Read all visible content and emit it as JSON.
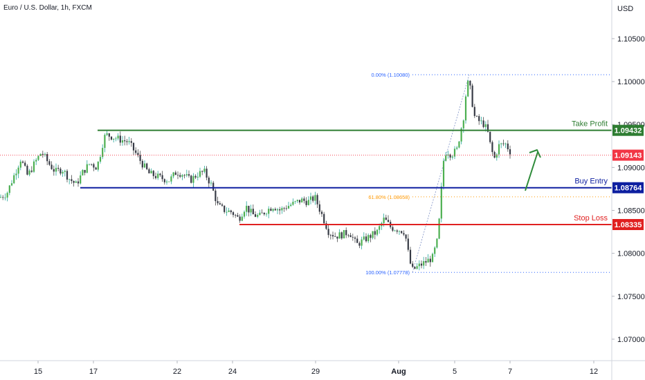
{
  "chart_data": {
    "type": "candlestick",
    "title": "Euro / U.S. Dollar, 1h, FXCM",
    "currency": "USD",
    "y_range": [
      1.0675,
      1.1095
    ],
    "x_ticks": [
      "15",
      "17",
      "22",
      "24",
      "29",
      "Aug",
      "5",
      "7",
      "12"
    ],
    "y_ticks": [
      "1.07000",
      "1.07500",
      "1.08000",
      "1.08500",
      "1.09000",
      "1.09500",
      "1.10000",
      "1.10500"
    ],
    "levels": [
      {
        "name": "Take Profit",
        "value": 1.09432,
        "label": "1.09432",
        "color": "#2e7d32"
      },
      {
        "name": "Buy Entry",
        "value": 1.08764,
        "label": "1.08764",
        "color": "#0d1fa0"
      },
      {
        "name": "Stop Loss",
        "value": 1.08335,
        "label": "1.08335",
        "color": "#e02020"
      }
    ],
    "current_price": {
      "value": 1.09143,
      "label": "1.09143",
      "color": "#f23645"
    },
    "fib_levels": [
      {
        "pct": "0.00%",
        "value": 1.1008,
        "label": "0.00% (1.10080)",
        "color": "#2962ff"
      },
      {
        "pct": "61.80%",
        "value": 1.08658,
        "label": "61.80% (1.08658)",
        "color": "#ff9800"
      },
      {
        "pct": "100.00%",
        "value": 1.07778,
        "label": "100.00% (1.07778)",
        "color": "#2962ff"
      }
    ],
    "path_anchors": [
      [
        0,
        1.0865
      ],
      [
        10,
        1.087
      ],
      [
        20,
        1.089
      ],
      [
        30,
        1.091
      ],
      [
        40,
        1.089
      ],
      [
        50,
        1.0905
      ],
      [
        60,
        1.0918
      ],
      [
        70,
        1.0905
      ],
      [
        80,
        1.0895
      ],
      [
        90,
        1.0898
      ],
      [
        100,
        1.0887
      ],
      [
        110,
        1.088
      ],
      [
        120,
        1.0895
      ],
      [
        130,
        1.0905
      ],
      [
        140,
        1.09
      ],
      [
        147,
        1.0922
      ],
      [
        150,
        1.0935
      ],
      [
        155,
        1.0938
      ],
      [
        165,
        1.0935
      ],
      [
        175,
        1.0932
      ],
      [
        185,
        1.093
      ],
      [
        195,
        1.0918
      ],
      [
        205,
        1.0905
      ],
      [
        215,
        1.0893
      ],
      [
        225,
        1.089
      ],
      [
        235,
        1.0887
      ],
      [
        245,
        1.0885
      ],
      [
        255,
        1.0895
      ],
      [
        265,
        1.0892
      ],
      [
        275,
        1.0885
      ],
      [
        285,
        1.0892
      ],
      [
        295,
        1.0895
      ],
      [
        305,
        1.088
      ],
      [
        315,
        1.0855
      ],
      [
        325,
        1.085
      ],
      [
        335,
        1.0848
      ],
      [
        345,
        1.084
      ],
      [
        355,
        1.0855
      ],
      [
        365,
        1.0845
      ],
      [
        375,
        1.0843
      ],
      [
        385,
        1.085
      ],
      [
        395,
        1.0855
      ],
      [
        405,
        1.085
      ],
      [
        415,
        1.0855
      ],
      [
        425,
        1.0858
      ],
      [
        435,
        1.0862
      ],
      [
        445,
        1.086
      ],
      [
        455,
        1.0865
      ],
      [
        465,
        1.0845
      ],
      [
        475,
        1.0825
      ],
      [
        485,
        1.082
      ],
      [
        495,
        1.0822
      ],
      [
        505,
        1.0825
      ],
      [
        515,
        1.081
      ],
      [
        525,
        1.0815
      ],
      [
        535,
        1.082
      ],
      [
        545,
        1.0825
      ],
      [
        555,
        1.084
      ],
      [
        565,
        1.083
      ],
      [
        575,
        1.0828
      ],
      [
        585,
        1.0825
      ],
      [
        590,
        1.08
      ],
      [
        595,
        1.078
      ],
      [
        605,
        1.0785
      ],
      [
        615,
        1.079
      ],
      [
        625,
        1.0795
      ],
      [
        632,
        1.0815
      ],
      [
        636,
        1.085
      ],
      [
        640,
        1.0905
      ],
      [
        645,
        1.092
      ],
      [
        652,
        1.0915
      ],
      [
        660,
        1.092
      ],
      [
        665,
        1.094
      ],
      [
        670,
        1.096
      ],
      [
        675,
        1.1
      ],
      [
        680,
        1.099
      ],
      [
        685,
        1.096
      ],
      [
        690,
        1.0955
      ],
      [
        700,
        1.095
      ],
      [
        705,
        1.094
      ],
      [
        710,
        1.092
      ],
      [
        715,
        1.091
      ],
      [
        720,
        1.0925
      ],
      [
        730,
        1.0928
      ],
      [
        740,
        1.0915
      ]
    ]
  }
}
